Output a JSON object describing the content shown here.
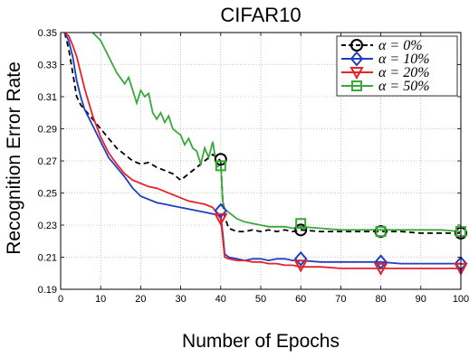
{
  "chart_data": {
    "type": "line",
    "title": "CIFAR10",
    "xlabel": "Number of Epochs",
    "ylabel": "Recognition Error Rate",
    "xlim": [
      0,
      100
    ],
    "ylim": [
      0.19,
      0.35
    ],
    "xticks": [
      "0",
      "10",
      "20",
      "30",
      "40",
      "50",
      "60",
      "70",
      "80",
      "90",
      "100"
    ],
    "yticks": [
      "0.19",
      "0.21",
      "0.23",
      "0.25",
      "0.27",
      "0.29",
      "0.31",
      "0.33",
      "0.35"
    ],
    "grid": true,
    "legend_position": "top-right",
    "series": [
      {
        "name": "α = 0%",
        "color": "#000000",
        "dash": "dashed",
        "marker": "circle",
        "x": [
          1,
          2,
          3,
          4,
          5,
          6,
          8,
          10,
          12,
          14,
          16,
          18,
          20,
          22,
          24,
          26,
          28,
          30,
          32,
          34,
          36,
          38,
          40,
          40.5,
          41,
          42,
          44,
          46,
          48,
          50,
          52,
          54,
          56,
          58,
          60,
          65,
          70,
          75,
          80,
          85,
          90,
          95,
          100
        ],
        "y": [
          0.35,
          0.34,
          0.325,
          0.31,
          0.305,
          0.302,
          0.296,
          0.29,
          0.284,
          0.278,
          0.274,
          0.27,
          0.268,
          0.269,
          0.266,
          0.264,
          0.262,
          0.258,
          0.262,
          0.266,
          0.27,
          0.274,
          0.27,
          0.245,
          0.235,
          0.228,
          0.226,
          0.226,
          0.227,
          0.226,
          0.227,
          0.226,
          0.227,
          0.226,
          0.227,
          0.226,
          0.226,
          0.226,
          0.226,
          0.226,
          0.225,
          0.225,
          0.225
        ],
        "markers_at": [
          40,
          60,
          80,
          100
        ],
        "marker_values": [
          0.271,
          0.227,
          0.226,
          0.225
        ]
      },
      {
        "name": "α = 10%",
        "color": "#1f3fbf",
        "dash": "solid",
        "marker": "diamond",
        "x": [
          1,
          2,
          3,
          4,
          5,
          6,
          8,
          10,
          12,
          14,
          16,
          18,
          20,
          22,
          24,
          26,
          28,
          30,
          32,
          34,
          36,
          38,
          40,
          40.5,
          41,
          42,
          44,
          46,
          48,
          50,
          52,
          54,
          56,
          58,
          60,
          65,
          70,
          75,
          80,
          85,
          90,
          95,
          100
        ],
        "y": [
          0.35,
          0.345,
          0.335,
          0.32,
          0.31,
          0.302,
          0.292,
          0.282,
          0.272,
          0.266,
          0.26,
          0.253,
          0.248,
          0.246,
          0.244,
          0.243,
          0.242,
          0.241,
          0.24,
          0.239,
          0.238,
          0.237,
          0.236,
          0.225,
          0.212,
          0.21,
          0.209,
          0.208,
          0.209,
          0.209,
          0.208,
          0.209,
          0.209,
          0.208,
          0.208,
          0.207,
          0.207,
          0.207,
          0.207,
          0.206,
          0.206,
          0.206,
          0.206
        ],
        "markers_at": [
          40,
          60,
          80,
          100
        ],
        "marker_values": [
          0.239,
          0.209,
          0.207,
          0.206
        ]
      },
      {
        "name": "α = 20%",
        "color": "#e8202a",
        "dash": "solid",
        "marker": "triangle-down",
        "x": [
          1,
          2,
          3,
          4,
          5,
          6,
          8,
          10,
          12,
          14,
          16,
          18,
          20,
          22,
          24,
          26,
          28,
          30,
          32,
          34,
          36,
          38,
          40,
          40.5,
          41,
          42,
          44,
          46,
          48,
          50,
          52,
          54,
          56,
          58,
          60,
          65,
          70,
          75,
          80,
          85,
          90,
          95,
          100
        ],
        "y": [
          0.35,
          0.348,
          0.342,
          0.335,
          0.325,
          0.315,
          0.298,
          0.285,
          0.275,
          0.268,
          0.262,
          0.258,
          0.256,
          0.254,
          0.253,
          0.251,
          0.249,
          0.247,
          0.245,
          0.244,
          0.243,
          0.241,
          0.234,
          0.222,
          0.21,
          0.209,
          0.208,
          0.208,
          0.207,
          0.207,
          0.206,
          0.206,
          0.205,
          0.205,
          0.204,
          0.204,
          0.203,
          0.203,
          0.203,
          0.203,
          0.203,
          0.203,
          0.203
        ],
        "markers_at": [
          40,
          60,
          80,
          100
        ],
        "marker_values": [
          0.234,
          0.205,
          0.203,
          0.203
        ]
      },
      {
        "name": "α = 50%",
        "color": "#3aa83a",
        "dash": "solid",
        "marker": "square",
        "x": [
          8,
          10,
          12,
          14,
          16,
          17,
          18,
          19,
          20,
          21,
          22,
          23,
          24,
          25,
          26,
          27,
          28,
          29,
          30,
          31,
          32,
          33,
          34,
          35,
          36,
          37,
          38,
          39,
          40,
          40.5,
          41,
          42,
          44,
          46,
          48,
          50,
          52,
          54,
          56,
          58,
          60,
          65,
          70,
          75,
          80,
          85,
          90,
          95,
          100
        ],
        "y": [
          0.35,
          0.345,
          0.335,
          0.325,
          0.318,
          0.322,
          0.314,
          0.306,
          0.314,
          0.31,
          0.312,
          0.3,
          0.296,
          0.3,
          0.294,
          0.298,
          0.29,
          0.288,
          0.286,
          0.28,
          0.284,
          0.278,
          0.276,
          0.268,
          0.278,
          0.272,
          0.282,
          0.266,
          0.268,
          0.245,
          0.24,
          0.238,
          0.234,
          0.232,
          0.231,
          0.23,
          0.229,
          0.229,
          0.229,
          0.228,
          0.229,
          0.228,
          0.227,
          0.227,
          0.227,
          0.227,
          0.227,
          0.227,
          0.226
        ],
        "markers_at": [
          40,
          60,
          80,
          100
        ],
        "marker_values": [
          0.267,
          0.231,
          0.226,
          0.226
        ]
      }
    ]
  }
}
